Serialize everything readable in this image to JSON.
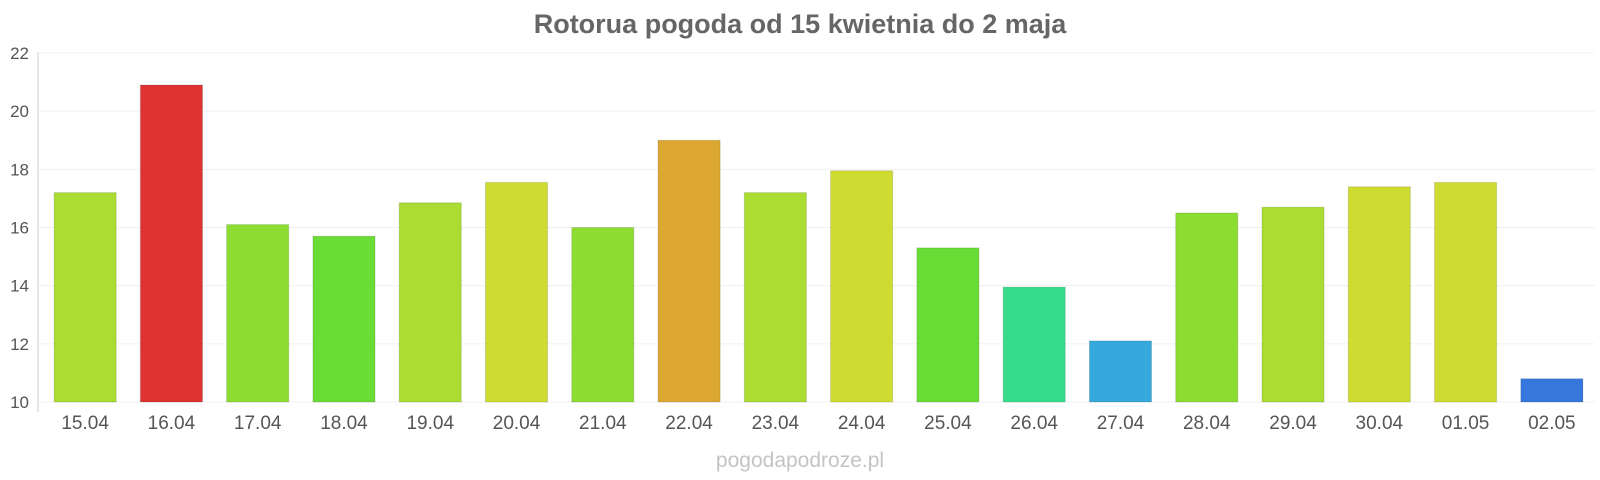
{
  "chart_data": {
    "type": "bar",
    "title": "Rotorua pogoda od 15 kwietnia do 2 maja",
    "categories": [
      "15.04",
      "16.04",
      "17.04",
      "18.04",
      "19.04",
      "20.04",
      "21.04",
      "22.04",
      "23.04",
      "24.04",
      "25.04",
      "26.04",
      "27.04",
      "28.04",
      "29.04",
      "30.04",
      "01.05",
      "02.05"
    ],
    "values": [
      17.2,
      20.9,
      16.1,
      15.7,
      16.85,
      17.55,
      16.0,
      19.0,
      17.2,
      17.95,
      15.3,
      13.95,
      12.1,
      16.5,
      16.7,
      17.4,
      17.55,
      10.8
    ],
    "colors": [
      "#aadc32",
      "#de3333",
      "#8cdc32",
      "#69dc35",
      "#aadc32",
      "#cedc32",
      "#8cdc32",
      "#dca832",
      "#aadc32",
      "#cedc32",
      "#69dc35",
      "#35dc8b",
      "#35a8dc",
      "#8cdc32",
      "#aadc32",
      "#cedc32",
      "#cedc32",
      "#3577dc"
    ],
    "ylim": [
      10,
      22
    ],
    "yticks": [
      10,
      12,
      14,
      16,
      18,
      20,
      22
    ],
    "xlabel": "",
    "ylabel": "",
    "grid": true,
    "legend": "none"
  },
  "watermark": "pogodapodroze.pl"
}
